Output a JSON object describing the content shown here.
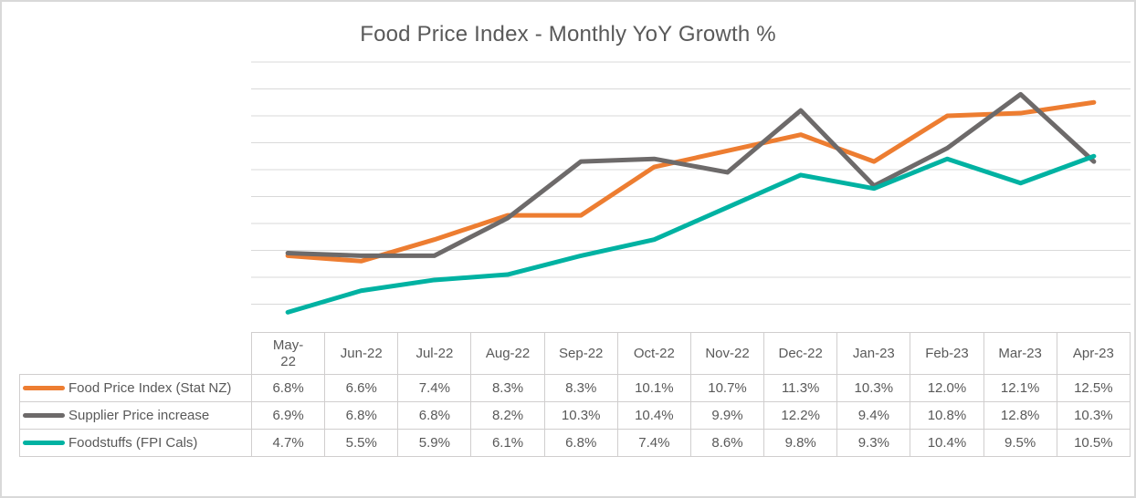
{
  "chart_data": {
    "type": "line",
    "title": "Food Price Index - Monthly YoY Growth %",
    "categories": [
      "May-22",
      "Jun-22",
      "Jul-22",
      "Aug-22",
      "Sep-22",
      "Oct-22",
      "Nov-22",
      "Dec-22",
      "Jan-23",
      "Feb-23",
      "Mar-23",
      "Apr-23"
    ],
    "series": [
      {
        "name": "Food Price Index (Stat NZ)",
        "color": "#ED7D31",
        "values": [
          6.8,
          6.6,
          7.4,
          8.3,
          8.3,
          10.1,
          10.7,
          11.3,
          10.3,
          12.0,
          12.1,
          12.5
        ]
      },
      {
        "name": "Supplier Price increase",
        "color": "#6D6A6A",
        "values": [
          6.9,
          6.8,
          6.8,
          8.2,
          10.3,
          10.4,
          9.9,
          12.2,
          9.4,
          10.8,
          12.8,
          10.3
        ]
      },
      {
        "name": "Foodstuffs (FPI Cals)",
        "color": "#00B2A2",
        "values": [
          4.7,
          5.5,
          5.9,
          6.1,
          6.8,
          7.4,
          8.6,
          9.8,
          9.3,
          10.4,
          9.5,
          10.5
        ]
      }
    ],
    "ylim": [
      4,
      14
    ],
    "y_major_unit": 1,
    "grid": true,
    "y_axis_labels_visible": false,
    "legend_position": "data-table",
    "value_format": "percent_1dp"
  },
  "data_table": {
    "header_display": [
      "May-\n22",
      "Jun-22",
      "Jul-22",
      "Aug-22",
      "Sep-22",
      "Oct-22",
      "Nov-22",
      "Dec-22",
      "Jan-23",
      "Feb-23",
      "Mar-23",
      "Apr-23"
    ]
  },
  "theme": {
    "text_color": "#595959",
    "gridline_color": "#D9D9D9",
    "table_border_color": "#D0CECE",
    "background_color": "#FFFFFF",
    "frame_border_color": "#D9D9D9"
  }
}
